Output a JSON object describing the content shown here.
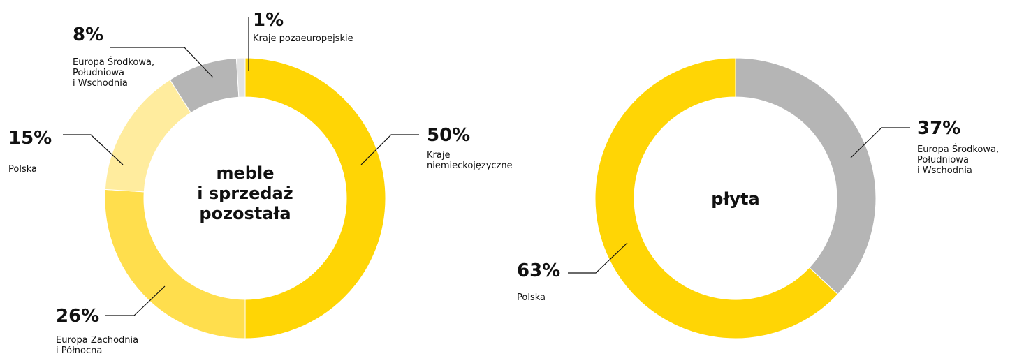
{
  "chart_data": [
    {
      "type": "pie",
      "center_label": [
        "meble",
        "i sprzedaż",
        "pozostała"
      ],
      "slices": [
        {
          "pct_label": "50%",
          "value": 50,
          "label": [
            "Kraje",
            "niemieckojęzyczne"
          ],
          "color": "#FFD505"
        },
        {
          "pct_label": "26%",
          "value": 26,
          "label": [
            "Europa Zachodnia",
            "i Północna"
          ],
          "color": "#FFDE4D"
        },
        {
          "pct_label": "15%",
          "value": 15,
          "label": [
            "Polska"
          ],
          "color": "#FFEC9E"
        },
        {
          "pct_label": "8%",
          "value": 8,
          "label": [
            "Europa Środkowa,",
            "Południowa",
            "i Wschodnia"
          ],
          "color": "#B5B5B5"
        },
        {
          "pct_label": "1%",
          "value": 1,
          "label": [
            "Kraje pozaeuropejskie"
          ],
          "color": "#E3E3E3"
        }
      ]
    },
    {
      "type": "pie",
      "center_label": [
        "płyta"
      ],
      "slices": [
        {
          "pct_label": "37%",
          "value": 37,
          "label": [
            "Europa Środkowa,",
            "Południowa",
            "i Wschodnia"
          ],
          "color": "#B5B5B5"
        },
        {
          "pct_label": "63%",
          "value": 63,
          "label": [
            "Polska"
          ],
          "color": "#FFD505"
        }
      ]
    }
  ]
}
